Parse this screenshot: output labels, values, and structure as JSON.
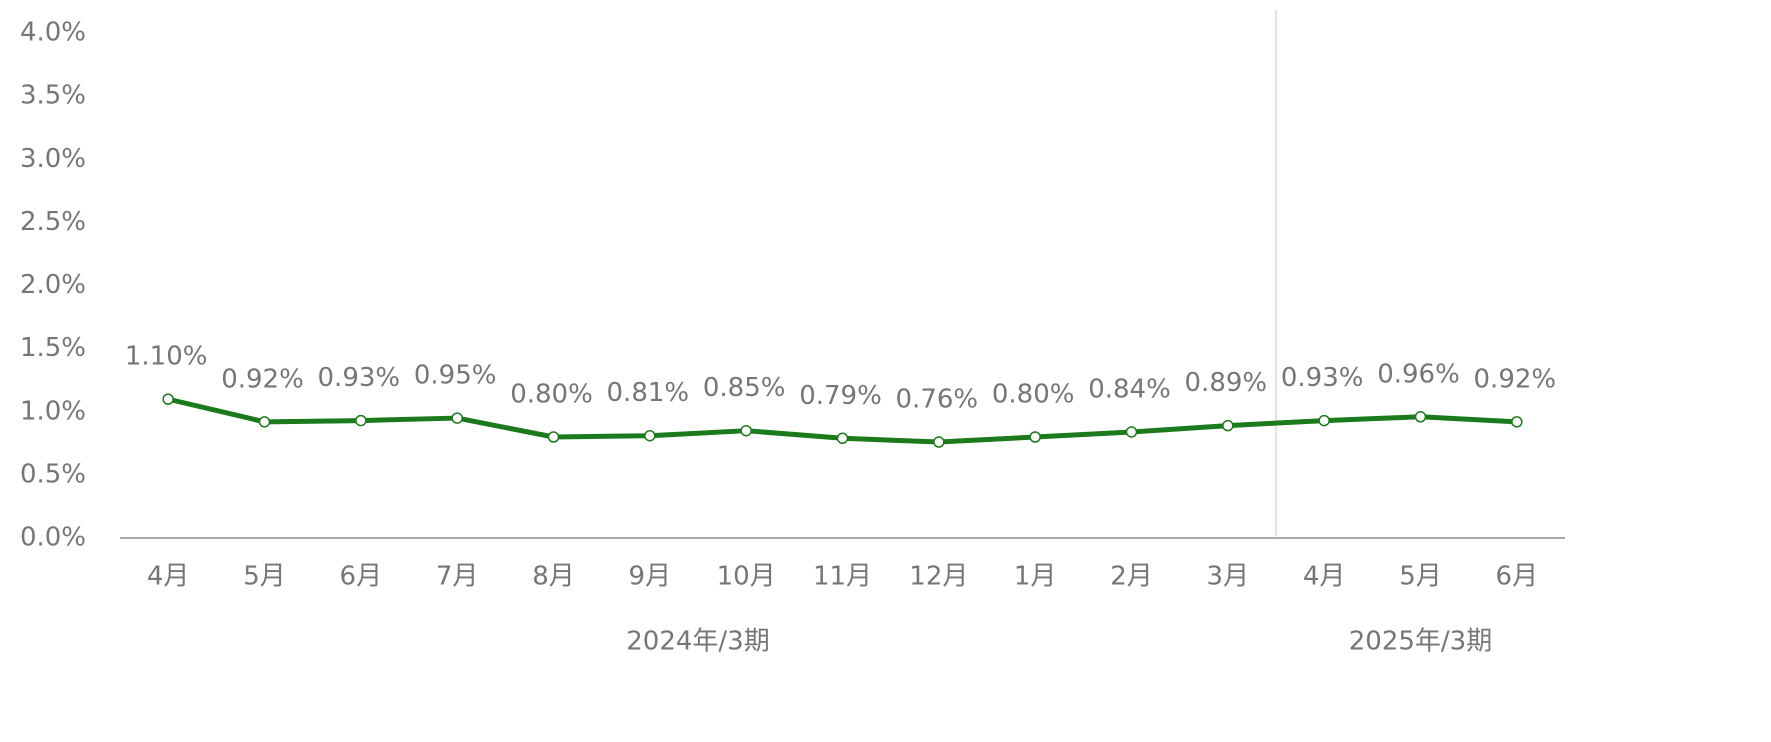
{
  "chart_data": {
    "type": "line",
    "categories": [
      "4月",
      "5月",
      "6月",
      "7月",
      "8月",
      "9月",
      "10月",
      "11月",
      "12月",
      "1月",
      "2月",
      "3月",
      "4月",
      "5月",
      "6月"
    ],
    "groups": [
      {
        "name": "2024年/3期",
        "size": 12
      },
      {
        "name": "2025年/3期",
        "size": 3
      }
    ],
    "values": [
      1.1,
      0.92,
      0.93,
      0.95,
      0.8,
      0.81,
      0.85,
      0.79,
      0.76,
      0.8,
      0.84,
      0.89,
      0.93,
      0.96,
      0.92
    ],
    "value_labels": [
      "1.10%",
      "0.92%",
      "0.93%",
      "0.95%",
      "0.80%",
      "0.81%",
      "0.85%",
      "0.79%",
      "0.76%",
      "0.80%",
      "0.84%",
      "0.89%",
      "0.93%",
      "0.96%",
      "0.92%"
    ],
    "color": "#1b7a1b",
    "ylim": [
      0,
      4
    ],
    "yticks": [
      {
        "value": 0,
        "label": "0.0%"
      },
      {
        "value": 0.5,
        "label": "0.5%"
      },
      {
        "value": 1,
        "label": "1.0%"
      },
      {
        "value": 1.5,
        "label": "1.5%"
      },
      {
        "value": 2,
        "label": "2.0%"
      },
      {
        "value": 2.5,
        "label": "2.5%"
      },
      {
        "value": 3,
        "label": "3.0%"
      },
      {
        "value": 3.5,
        "label": "3.5%"
      },
      {
        "value": 4,
        "label": "4.0%"
      }
    ],
    "grid": false
  }
}
